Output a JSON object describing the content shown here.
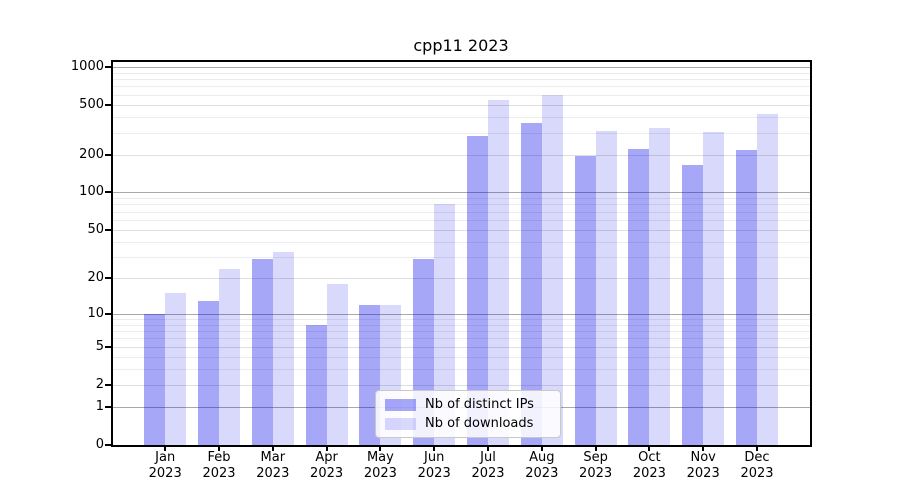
{
  "chart_data": {
    "type": "bar",
    "title": "cpp11 2023",
    "categories": [
      "Jan",
      "Feb",
      "Mar",
      "Apr",
      "May",
      "Jun",
      "Jul",
      "Aug",
      "Sep",
      "Oct",
      "Nov",
      "Dec"
    ],
    "year_label": "2023",
    "series": [
      {
        "name": "Nb of distinct IPs",
        "values": [
          10,
          13,
          29,
          8,
          12,
          29,
          280,
          358,
          196,
          220,
          166,
          218
        ]
      },
      {
        "name": "Nb of downloads",
        "values": [
          15,
          24,
          33,
          18,
          12,
          80,
          545,
          595,
          310,
          327,
          303,
          419
        ]
      }
    ],
    "yscale": "log1p",
    "yticks": [
      0,
      1,
      2,
      5,
      10,
      20,
      50,
      100,
      200,
      500,
      1000
    ],
    "ylim": [
      0,
      1090
    ],
    "grid": true,
    "legend_position": "lower-center-inside"
  },
  "colors": {
    "bar_ips": "rgba(0,0,235,0.345)",
    "bar_downloads": "rgba(0,0,235,0.15)",
    "grid_major": "#a9a9a9",
    "grid_mid": "#dfdfdf",
    "grid_minor": "#ececec",
    "spine": "#000000",
    "background": "#ffffff"
  }
}
